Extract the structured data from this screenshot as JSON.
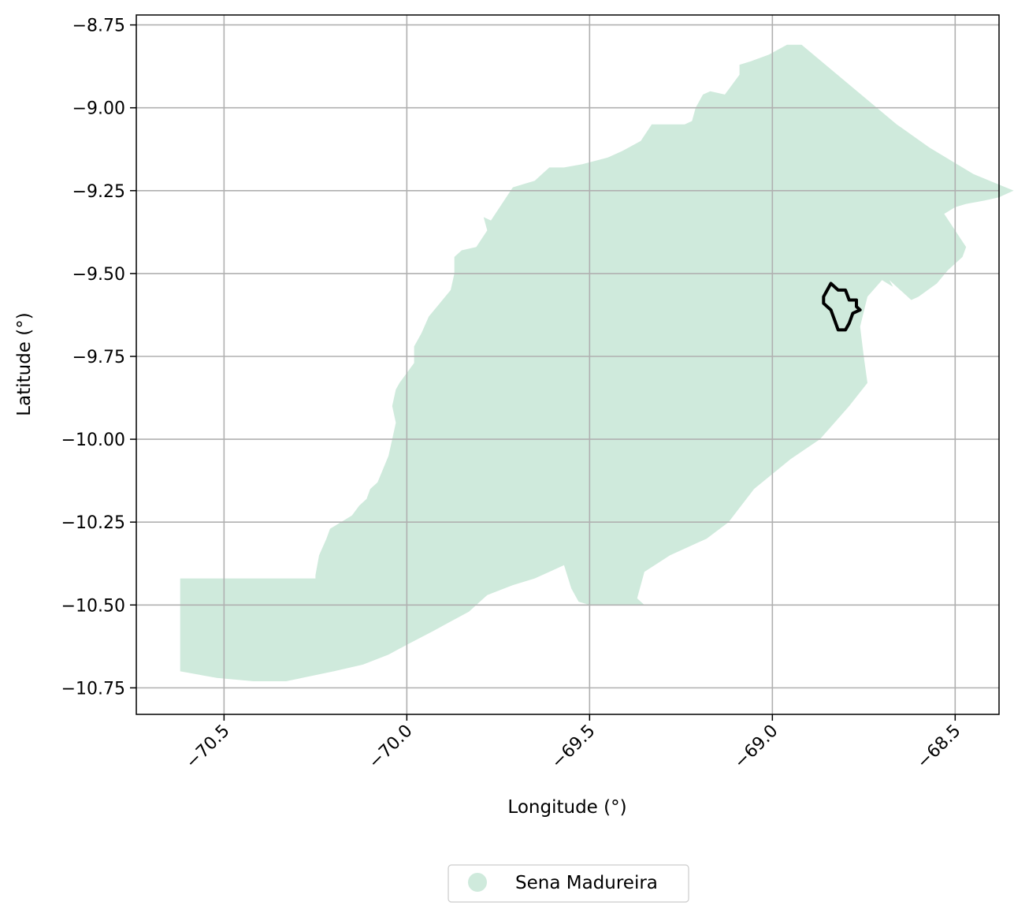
{
  "chart_data": {
    "type": "map",
    "xlabel": "Longitude (°)",
    "ylabel": "Latitude (°)",
    "xlim": [
      -70.74,
      -68.38
    ],
    "ylim": [
      -10.83,
      -8.72
    ],
    "x_ticks": [
      -70.5,
      -70.0,
      -69.5,
      -69.0,
      -68.5
    ],
    "x_tick_labels": [
      "−70.5",
      "−70.0",
      "−69.5",
      "−69.0",
      "−68.5"
    ],
    "y_ticks": [
      -8.75,
      -9.0,
      -9.25,
      -9.5,
      -9.75,
      -10.0,
      -10.25,
      -10.5,
      -10.75
    ],
    "y_tick_labels": [
      "−8.75",
      "−9.00",
      "−9.25",
      "−9.50",
      "−9.75",
      "−10.00",
      "−10.25",
      "−10.50",
      "−10.75"
    ],
    "grid": true,
    "legend_position": "bottom-center",
    "series": [
      {
        "name": "Sena Madureira",
        "color": "#cfeadc",
        "polygon": [
          [
            -70.62,
            -10.42
          ],
          [
            -70.25,
            -10.42
          ],
          [
            -70.25,
            -10.41
          ],
          [
            -70.24,
            -10.35
          ],
          [
            -70.22,
            -10.3
          ],
          [
            -70.21,
            -10.27
          ],
          [
            -70.18,
            -10.25
          ],
          [
            -70.15,
            -10.23
          ],
          [
            -70.13,
            -10.2
          ],
          [
            -70.11,
            -10.18
          ],
          [
            -70.1,
            -10.15
          ],
          [
            -70.08,
            -10.13
          ],
          [
            -70.05,
            -10.05
          ],
          [
            -70.04,
            -10.0
          ],
          [
            -70.03,
            -9.95
          ],
          [
            -70.04,
            -9.9
          ],
          [
            -70.03,
            -9.85
          ],
          [
            -70.02,
            -9.83
          ],
          [
            -69.98,
            -9.77
          ],
          [
            -69.98,
            -9.72
          ],
          [
            -69.96,
            -9.68
          ],
          [
            -69.94,
            -9.63
          ],
          [
            -69.91,
            -9.59
          ],
          [
            -69.88,
            -9.55
          ],
          [
            -69.87,
            -9.5
          ],
          [
            -69.87,
            -9.45
          ],
          [
            -69.85,
            -9.43
          ],
          [
            -69.81,
            -9.42
          ],
          [
            -69.78,
            -9.37
          ],
          [
            -69.79,
            -9.33
          ],
          [
            -69.77,
            -9.34
          ],
          [
            -69.71,
            -9.24
          ],
          [
            -69.68,
            -9.23
          ],
          [
            -69.65,
            -9.22
          ],
          [
            -69.63,
            -9.2
          ],
          [
            -69.61,
            -9.18
          ],
          [
            -69.57,
            -9.18
          ],
          [
            -69.52,
            -9.17
          ],
          [
            -69.45,
            -9.15
          ],
          [
            -69.41,
            -9.13
          ],
          [
            -69.36,
            -9.1
          ],
          [
            -69.33,
            -9.05
          ],
          [
            -69.24,
            -9.05
          ],
          [
            -69.22,
            -9.04
          ],
          [
            -69.21,
            -9.0
          ],
          [
            -69.19,
            -8.96
          ],
          [
            -69.17,
            -8.95
          ],
          [
            -69.13,
            -8.96
          ],
          [
            -69.09,
            -8.9
          ],
          [
            -69.09,
            -8.87
          ],
          [
            -69.06,
            -8.86
          ],
          [
            -69.01,
            -8.84
          ],
          [
            -68.96,
            -8.81
          ],
          [
            -68.92,
            -8.81
          ],
          [
            -68.66,
            -9.05
          ],
          [
            -68.57,
            -9.12
          ],
          [
            -68.45,
            -9.2
          ],
          [
            -68.34,
            -9.25
          ],
          [
            -68.38,
            -9.27
          ],
          [
            -68.42,
            -9.28
          ],
          [
            -68.47,
            -9.29
          ],
          [
            -68.5,
            -9.3
          ],
          [
            -68.53,
            -9.32
          ],
          [
            -68.47,
            -9.42
          ],
          [
            -68.48,
            -9.45
          ],
          [
            -68.52,
            -9.49
          ],
          [
            -68.55,
            -9.53
          ],
          [
            -68.6,
            -9.57
          ],
          [
            -68.62,
            -9.58
          ],
          [
            -68.68,
            -9.52
          ],
          [
            -68.67,
            -9.54
          ],
          [
            -68.7,
            -9.52
          ],
          [
            -68.74,
            -9.57
          ],
          [
            -68.76,
            -9.66
          ],
          [
            -68.75,
            -9.75
          ],
          [
            -68.74,
            -9.83
          ],
          [
            -68.79,
            -9.9
          ],
          [
            -68.83,
            -9.95
          ],
          [
            -68.87,
            -10.0
          ],
          [
            -68.95,
            -10.06
          ],
          [
            -69.05,
            -10.15
          ],
          [
            -69.12,
            -10.25
          ],
          [
            -69.18,
            -10.3
          ],
          [
            -69.28,
            -10.35
          ],
          [
            -69.35,
            -10.4
          ],
          [
            -69.37,
            -10.48
          ],
          [
            -69.35,
            -10.5
          ],
          [
            -69.5,
            -10.5
          ],
          [
            -69.53,
            -10.49
          ],
          [
            -69.55,
            -10.45
          ],
          [
            -69.57,
            -10.38
          ],
          [
            -69.61,
            -10.4
          ],
          [
            -69.65,
            -10.42
          ],
          [
            -69.71,
            -10.44
          ],
          [
            -69.78,
            -10.47
          ],
          [
            -69.83,
            -10.52
          ],
          [
            -69.88,
            -10.55
          ],
          [
            -69.93,
            -10.58
          ],
          [
            -70.0,
            -10.62
          ],
          [
            -70.05,
            -10.65
          ],
          [
            -70.12,
            -10.68
          ],
          [
            -70.2,
            -10.7
          ],
          [
            -70.33,
            -10.73
          ],
          [
            -70.42,
            -10.73
          ],
          [
            -70.52,
            -10.72
          ],
          [
            -70.62,
            -10.7
          ]
        ]
      },
      {
        "name": "",
        "color": "#000000",
        "polygon": [
          [
            -68.84,
            -9.53
          ],
          [
            -68.82,
            -9.55
          ],
          [
            -68.8,
            -9.55
          ],
          [
            -68.79,
            -9.58
          ],
          [
            -68.77,
            -9.58
          ],
          [
            -68.77,
            -9.6
          ],
          [
            -68.76,
            -9.61
          ],
          [
            -68.78,
            -9.62
          ],
          [
            -68.79,
            -9.65
          ],
          [
            -68.8,
            -9.67
          ],
          [
            -68.82,
            -9.67
          ],
          [
            -68.83,
            -9.64
          ],
          [
            -68.84,
            -9.61
          ],
          [
            -68.86,
            -9.59
          ],
          [
            -68.86,
            -9.57
          ]
        ]
      }
    ]
  }
}
